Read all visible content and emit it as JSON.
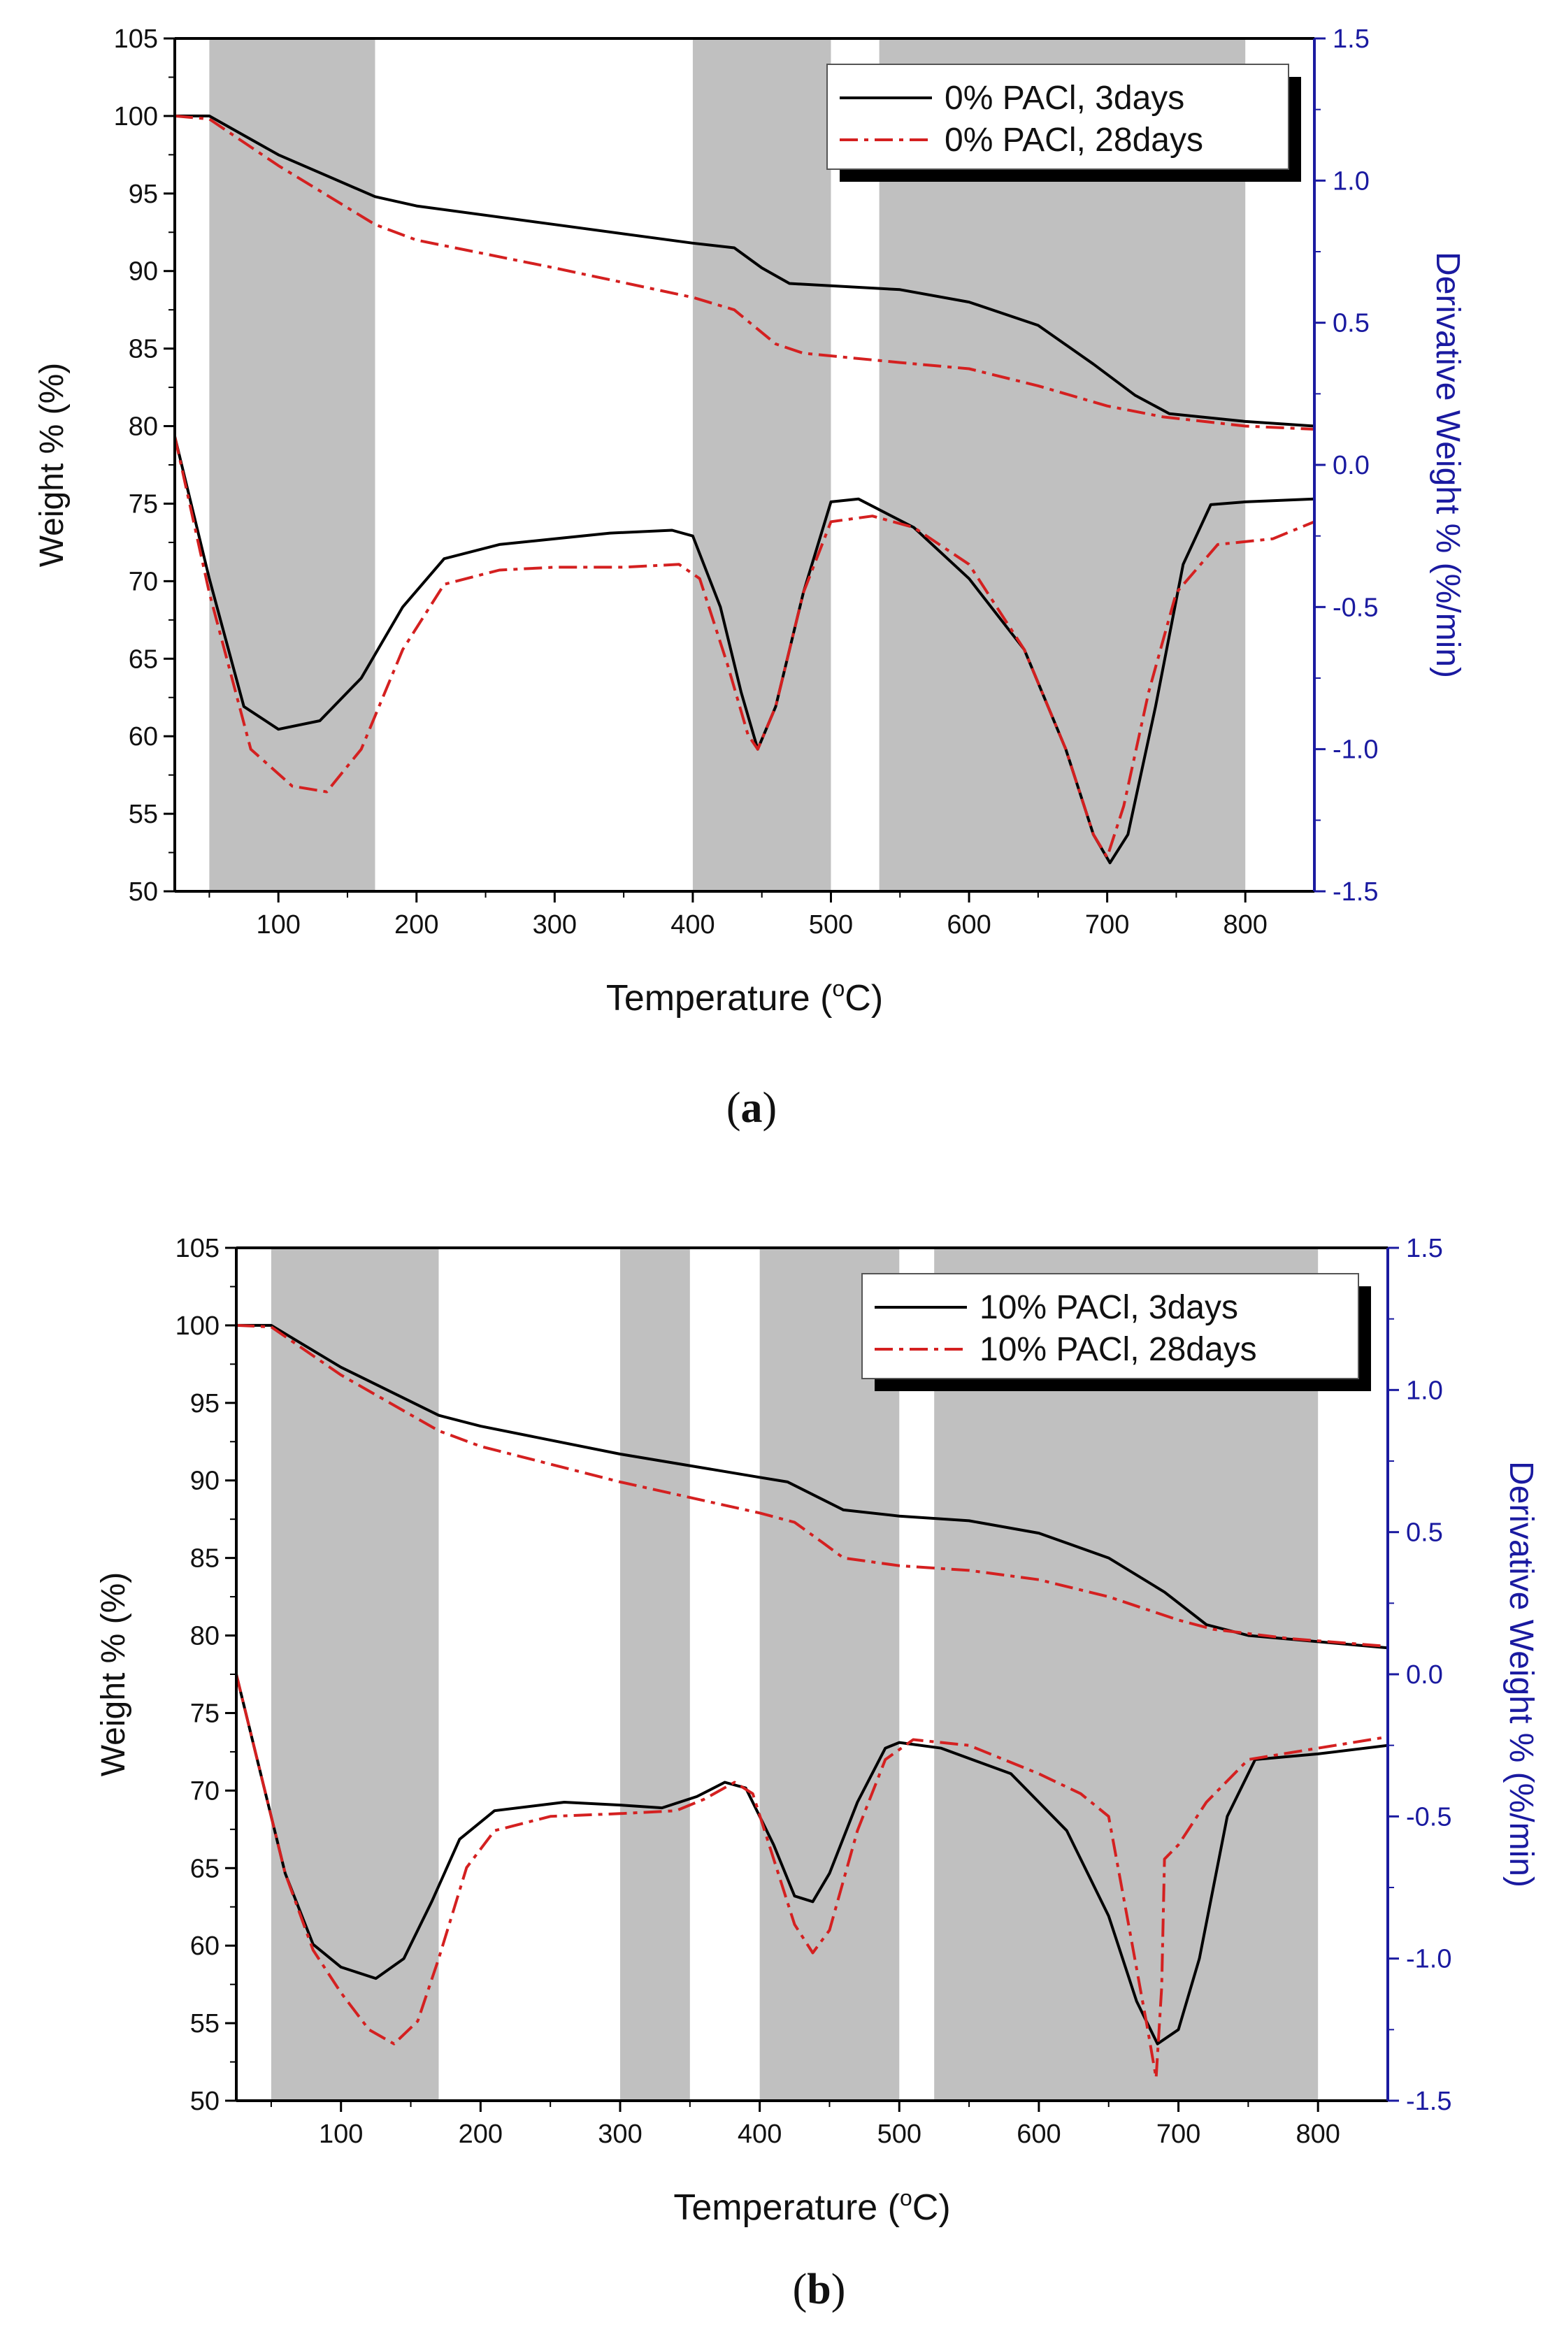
{
  "chart_data": [
    {
      "panel_label": "a",
      "type": "line",
      "xlabel": "Temperature",
      "xlabel_unit_sup": "o",
      "xlabel_unit": "C",
      "ylabel": "Weight % (%)",
      "ylabel_right": "Derivative Weight % (%/min)",
      "xlim": [
        25,
        850
      ],
      "ylim": [
        50,
        105
      ],
      "ylim_right": [
        -1.5,
        1.5
      ],
      "x_ticks": [
        100,
        200,
        300,
        400,
        500,
        600,
        700,
        800
      ],
      "y_ticks": [
        50,
        55,
        60,
        65,
        70,
        75,
        80,
        85,
        90,
        95,
        100,
        105
      ],
      "y_ticks_right": [
        "-1.5",
        "-1.0",
        "-0.5",
        "0.0",
        "0.5",
        "1.0",
        "1.5"
      ],
      "shaded_x_ranges": [
        [
          50,
          170
        ],
        [
          400,
          500
        ],
        [
          535,
          800
        ]
      ],
      "legend": [
        "0% PACl,  3days",
        "0% PACl, 28days"
      ],
      "series": [
        {
          "name": "0% PACl,  3days",
          "kind": "weight",
          "axis": "left",
          "color": "#000000",
          "style": "solid",
          "points": [
            [
              25,
              100
            ],
            [
              50,
              100
            ],
            [
              100,
              97.5
            ],
            [
              170,
              94.8
            ],
            [
              200,
              94.2
            ],
            [
              300,
              93
            ],
            [
              400,
              91.8
            ],
            [
              430,
              91.5
            ],
            [
              450,
              90.2
            ],
            [
              470,
              89.2
            ],
            [
              550,
              88.8
            ],
            [
              600,
              88
            ],
            [
              650,
              86.5
            ],
            [
              690,
              84
            ],
            [
              720,
              82
            ],
            [
              745,
              80.8
            ],
            [
              800,
              80.3
            ],
            [
              850,
              80
            ]
          ]
        },
        {
          "name": "0% PACl, 28days",
          "kind": "weight",
          "axis": "left",
          "color": "#d42020",
          "style": "dashdot",
          "points": [
            [
              25,
              100
            ],
            [
              50,
              99.8
            ],
            [
              100,
              96.8
            ],
            [
              170,
              93
            ],
            [
              200,
              92
            ],
            [
              300,
              90.2
            ],
            [
              400,
              88.3
            ],
            [
              430,
              87.5
            ],
            [
              460,
              85.3
            ],
            [
              480,
              84.7
            ],
            [
              550,
              84.1
            ],
            [
              600,
              83.7
            ],
            [
              650,
              82.6
            ],
            [
              700,
              81.3
            ],
            [
              740,
              80.6
            ],
            [
              800,
              80
            ],
            [
              850,
              79.8
            ]
          ]
        },
        {
          "name": "0% PACl,  3days",
          "kind": "derivative",
          "axis": "right",
          "color": "#000000",
          "style": "solid",
          "points": [
            [
              25,
              0.1
            ],
            [
              50,
              -0.4
            ],
            [
              75,
              -0.85
            ],
            [
              100,
              -0.93
            ],
            [
              130,
              -0.9
            ],
            [
              160,
              -0.75
            ],
            [
              190,
              -0.5
            ],
            [
              220,
              -0.33
            ],
            [
              260,
              -0.28
            ],
            [
              300,
              -0.26
            ],
            [
              340,
              -0.24
            ],
            [
              385,
              -0.23
            ],
            [
              400,
              -0.25
            ],
            [
              420,
              -0.5
            ],
            [
              435,
              -0.8
            ],
            [
              447,
              -1.0
            ],
            [
              460,
              -0.85
            ],
            [
              480,
              -0.45
            ],
            [
              500,
              -0.13
            ],
            [
              520,
              -0.12
            ],
            [
              560,
              -0.22
            ],
            [
              600,
              -0.4
            ],
            [
              640,
              -0.65
            ],
            [
              670,
              -1.0
            ],
            [
              690,
              -1.3
            ],
            [
              702,
              -1.4
            ],
            [
              715,
              -1.3
            ],
            [
              735,
              -0.85
            ],
            [
              755,
              -0.35
            ],
            [
              775,
              -0.14
            ],
            [
              800,
              -0.13
            ],
            [
              850,
              -0.12
            ]
          ]
        },
        {
          "name": "0% PACl, 28days",
          "kind": "derivative",
          "axis": "right",
          "color": "#d42020",
          "style": "dashdot",
          "points": [
            [
              25,
              0.1
            ],
            [
              50,
              -0.45
            ],
            [
              80,
              -1.0
            ],
            [
              110,
              -1.13
            ],
            [
              135,
              -1.15
            ],
            [
              160,
              -1.0
            ],
            [
              190,
              -0.65
            ],
            [
              220,
              -0.42
            ],
            [
              260,
              -0.37
            ],
            [
              300,
              -0.36
            ],
            [
              350,
              -0.36
            ],
            [
              390,
              -0.35
            ],
            [
              405,
              -0.4
            ],
            [
              425,
              -0.7
            ],
            [
              440,
              -0.95
            ],
            [
              447,
              -1.0
            ],
            [
              460,
              -0.85
            ],
            [
              480,
              -0.45
            ],
            [
              500,
              -0.2
            ],
            [
              530,
              -0.18
            ],
            [
              560,
              -0.22
            ],
            [
              600,
              -0.35
            ],
            [
              640,
              -0.65
            ],
            [
              670,
              -1.0
            ],
            [
              690,
              -1.3
            ],
            [
              700,
              -1.38
            ],
            [
              712,
              -1.2
            ],
            [
              730,
              -0.8
            ],
            [
              750,
              -0.45
            ],
            [
              780,
              -0.28
            ],
            [
              820,
              -0.26
            ],
            [
              850,
              -0.2
            ]
          ]
        }
      ]
    },
    {
      "panel_label": "b",
      "type": "line",
      "xlabel": "Temperature",
      "xlabel_unit_sup": "o",
      "xlabel_unit": "C",
      "ylabel": "Weight % (%)",
      "ylabel_right": "Derivative Weight % (%/min)",
      "xlim": [
        25,
        850
      ],
      "ylim": [
        50,
        105
      ],
      "ylim_right": [
        -1.5,
        1.5
      ],
      "x_ticks": [
        100,
        200,
        300,
        400,
        500,
        600,
        700,
        800
      ],
      "y_ticks": [
        50,
        55,
        60,
        65,
        70,
        75,
        80,
        85,
        90,
        95,
        100,
        105
      ],
      "y_ticks_right": [
        "-1.5",
        "-1.0",
        "-0.5",
        "0.0",
        "0.5",
        "1.0",
        "1.5"
      ],
      "shaded_x_ranges": [
        [
          50,
          170
        ],
        [
          300,
          350
        ],
        [
          400,
          500
        ],
        [
          525,
          800
        ]
      ],
      "legend": [
        "10% PACl,  3days",
        "10% PACl, 28days"
      ],
      "series": [
        {
          "name": "10% PACl,  3days",
          "kind": "weight",
          "axis": "left",
          "color": "#000000",
          "style": "solid",
          "points": [
            [
              25,
              100
            ],
            [
              50,
              100
            ],
            [
              100,
              97.3
            ],
            [
              170,
              94.2
            ],
            [
              200,
              93.5
            ],
            [
              300,
              91.7
            ],
            [
              400,
              90.2
            ],
            [
              420,
              89.9
            ],
            [
              440,
              89
            ],
            [
              460,
              88.1
            ],
            [
              500,
              87.7
            ],
            [
              550,
              87.4
            ],
            [
              600,
              86.6
            ],
            [
              650,
              85
            ],
            [
              690,
              82.8
            ],
            [
              720,
              80.7
            ],
            [
              750,
              80
            ],
            [
              800,
              79.6
            ],
            [
              850,
              79.2
            ]
          ]
        },
        {
          "name": "10% PACl, 28days",
          "kind": "weight",
          "axis": "left",
          "color": "#d42020",
          "style": "dashdot",
          "points": [
            [
              25,
              100
            ],
            [
              50,
              99.9
            ],
            [
              100,
              96.8
            ],
            [
              170,
              93.2
            ],
            [
              200,
              92.2
            ],
            [
              300,
              89.9
            ],
            [
              400,
              87.9
            ],
            [
              425,
              87.3
            ],
            [
              445,
              86
            ],
            [
              460,
              85
            ],
            [
              500,
              84.5
            ],
            [
              550,
              84.2
            ],
            [
              600,
              83.6
            ],
            [
              650,
              82.5
            ],
            [
              700,
              81
            ],
            [
              725,
              80.4
            ],
            [
              780,
              79.8
            ],
            [
              850,
              79.3
            ]
          ]
        },
        {
          "name": "10% PACl,  3days",
          "kind": "derivative",
          "axis": "right",
          "color": "#000000",
          "style": "solid",
          "points": [
            [
              25,
              0.0
            ],
            [
              40,
              -0.3
            ],
            [
              60,
              -0.7
            ],
            [
              80,
              -0.95
            ],
            [
              100,
              -1.03
            ],
            [
              125,
              -1.07
            ],
            [
              145,
              -1.0
            ],
            [
              165,
              -0.8
            ],
            [
              185,
              -0.58
            ],
            [
              210,
              -0.48
            ],
            [
              260,
              -0.45
            ],
            [
              300,
              -0.46
            ],
            [
              330,
              -0.47
            ],
            [
              355,
              -0.43
            ],
            [
              375,
              -0.38
            ],
            [
              390,
              -0.4
            ],
            [
              410,
              -0.6
            ],
            [
              425,
              -0.78
            ],
            [
              438,
              -0.8
            ],
            [
              450,
              -0.7
            ],
            [
              470,
              -0.45
            ],
            [
              490,
              -0.26
            ],
            [
              500,
              -0.24
            ],
            [
              530,
              -0.26
            ],
            [
              580,
              -0.35
            ],
            [
              620,
              -0.55
            ],
            [
              650,
              -0.85
            ],
            [
              670,
              -1.15
            ],
            [
              685,
              -1.3
            ],
            [
              700,
              -1.25
            ],
            [
              715,
              -1.0
            ],
            [
              735,
              -0.5
            ],
            [
              755,
              -0.3
            ],
            [
              800,
              -0.28
            ],
            [
              850,
              -0.25
            ]
          ]
        },
        {
          "name": "10% PACl, 28days",
          "kind": "derivative",
          "axis": "right",
          "color": "#d42020",
          "style": "dashdot",
          "points": [
            [
              25,
              0.0
            ],
            [
              40,
              -0.3
            ],
            [
              60,
              -0.7
            ],
            [
              80,
              -0.97
            ],
            [
              100,
              -1.12
            ],
            [
              120,
              -1.25
            ],
            [
              138,
              -1.3
            ],
            [
              155,
              -1.22
            ],
            [
              170,
              -1.0
            ],
            [
              190,
              -0.68
            ],
            [
              210,
              -0.55
            ],
            [
              250,
              -0.5
            ],
            [
              300,
              -0.49
            ],
            [
              340,
              -0.48
            ],
            [
              360,
              -0.44
            ],
            [
              382,
              -0.38
            ],
            [
              395,
              -0.42
            ],
            [
              410,
              -0.65
            ],
            [
              425,
              -0.88
            ],
            [
              438,
              -0.98
            ],
            [
              450,
              -0.9
            ],
            [
              470,
              -0.55
            ],
            [
              490,
              -0.3
            ],
            [
              510,
              -0.23
            ],
            [
              550,
              -0.25
            ],
            [
              600,
              -0.35
            ],
            [
              630,
              -0.42
            ],
            [
              650,
              -0.5
            ],
            [
              665,
              -0.9
            ],
            [
              678,
              -1.25
            ],
            [
              684,
              -1.42
            ],
            [
              688,
              -1.1
            ],
            [
              690,
              -0.65
            ],
            [
              700,
              -0.6
            ],
            [
              720,
              -0.45
            ],
            [
              750,
              -0.3
            ],
            [
              800,
              -0.26
            ],
            [
              850,
              -0.22
            ]
          ]
        }
      ]
    }
  ]
}
